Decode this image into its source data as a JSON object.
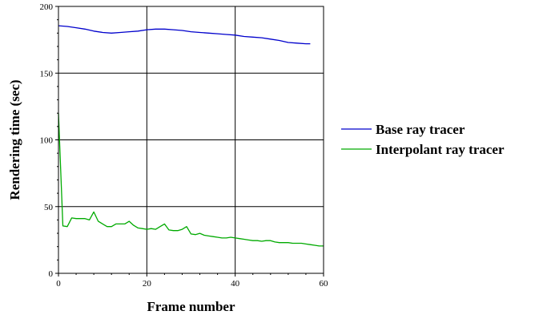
{
  "chart_data": {
    "type": "line",
    "title": "",
    "xlabel": "Frame number",
    "ylabel": "Rendering time (sec)",
    "xlim": [
      0,
      60
    ],
    "ylim": [
      0,
      200
    ],
    "xticks": [
      0,
      20,
      40,
      60
    ],
    "yticks": [
      0,
      50,
      100,
      150,
      200
    ],
    "grid": true,
    "legend_position": "right",
    "series": [
      {
        "name": "Base ray tracer",
        "color": "#0000cc",
        "x": [
          0,
          2,
          4,
          6,
          8,
          10,
          12,
          14,
          16,
          18,
          20,
          22,
          24,
          26,
          28,
          30,
          32,
          34,
          36,
          38,
          40,
          42,
          44,
          46,
          48,
          50,
          52,
          54,
          56,
          57
        ],
        "y": [
          185.5,
          185,
          184,
          183,
          181.5,
          180.5,
          180,
          180.5,
          181,
          181.5,
          182.5,
          183,
          183,
          182.5,
          182,
          181,
          180.5,
          180,
          179.5,
          179,
          178.5,
          177.5,
          177,
          176.5,
          175.5,
          174.5,
          173,
          172.5,
          172,
          172
        ]
      },
      {
        "name": "Interpolant ray tracer",
        "color": "#00aa00",
        "x": [
          0,
          1,
          2,
          3,
          4,
          5,
          6,
          7,
          8,
          9,
          10,
          11,
          12,
          13,
          14,
          15,
          16,
          17,
          18,
          19,
          20,
          21,
          22,
          23,
          24,
          25,
          26,
          27,
          28,
          29,
          30,
          31,
          32,
          33,
          34,
          35,
          36,
          37,
          38,
          39,
          40,
          41,
          42,
          43,
          44,
          45,
          46,
          47,
          48,
          49,
          50,
          51,
          52,
          53,
          54,
          55,
          56,
          57,
          58,
          59,
          60
        ],
        "y": [
          120,
          35.5,
          35,
          41.5,
          41,
          41,
          41,
          40,
          46,
          39,
          37,
          35,
          35,
          37,
          37,
          37,
          39,
          36,
          34,
          33.5,
          33,
          33.5,
          33,
          35,
          37,
          32.5,
          32,
          32,
          33,
          35,
          29.5,
          29,
          30,
          28.5,
          28,
          27.5,
          27,
          26.5,
          26.5,
          27,
          26.5,
          26,
          25.5,
          25,
          24.5,
          24.5,
          24,
          24.5,
          24.5,
          23.5,
          23,
          23,
          23,
          22.5,
          22.5,
          22.5,
          22,
          21.5,
          21,
          20.5,
          20.5
        ]
      }
    ]
  }
}
